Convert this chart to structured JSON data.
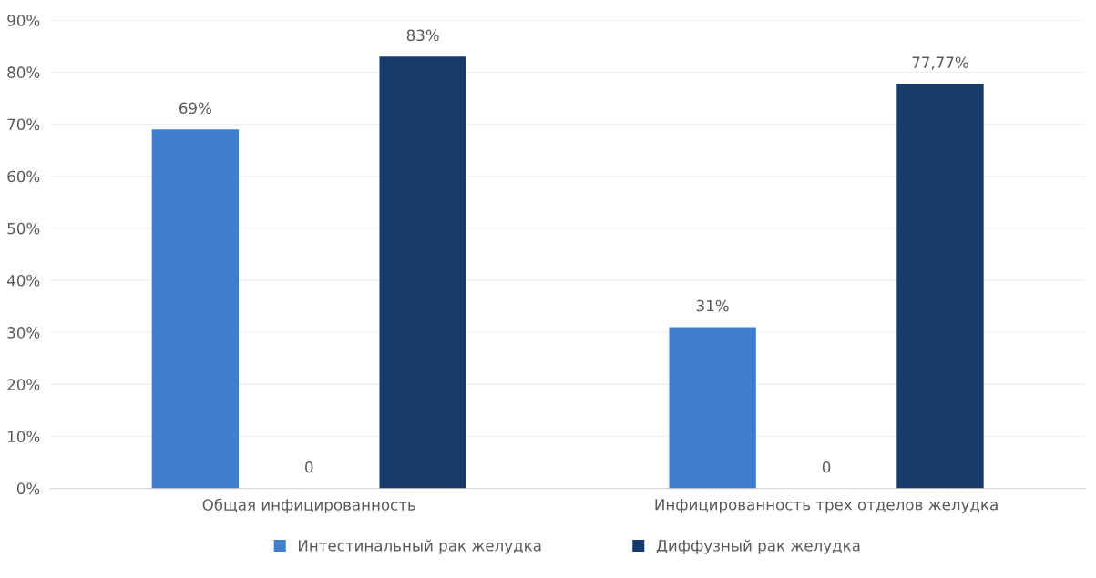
{
  "chart_data": {
    "type": "bar",
    "categories": [
      "Общая инфицированность",
      "Инфицированность трех отделов желудка"
    ],
    "series": [
      {
        "name": "Интестинальный рак желудка",
        "color": "#3f7fcc",
        "values": [
          69,
          31
        ],
        "value_labels": [
          "69%",
          "31%"
        ]
      },
      {
        "color": "#a5a5a5",
        "values": [
          0,
          0
        ],
        "value_labels": [
          "0",
          "0"
        ]
      },
      {
        "name": "Диффузный рак желудка",
        "color": "#173c6c",
        "values": [
          83,
          77.77
        ],
        "value_labels": [
          "83%",
          "77,77%"
        ]
      }
    ],
    "ylim": [
      0,
      90
    ],
    "yticks": [
      {
        "value": 0,
        "label": "0%"
      },
      {
        "value": 10,
        "label": "10%"
      },
      {
        "value": 20,
        "label": "20%"
      },
      {
        "value": 30,
        "label": "30%"
      },
      {
        "value": 40,
        "label": "40%"
      },
      {
        "value": 50,
        "label": "50%"
      },
      {
        "value": 60,
        "label": "60%"
      },
      {
        "value": 70,
        "label": "70%"
      },
      {
        "value": 80,
        "label": "80%"
      },
      {
        "value": 90,
        "label": "90%"
      }
    ],
    "grid": "y",
    "legend": "bottom"
  }
}
